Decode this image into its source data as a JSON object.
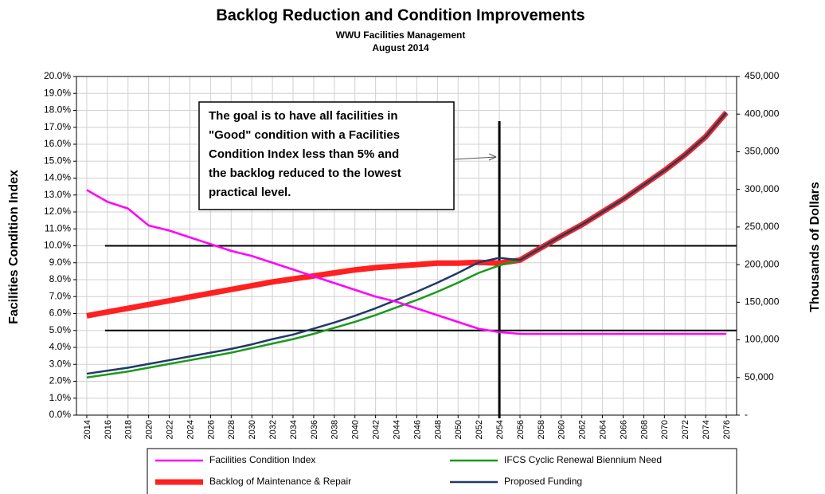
{
  "chart_data": {
    "type": "line",
    "title": "Backlog Reduction and Condition Improvements",
    "subtitle": [
      "WWU Facilities Management",
      "August 2014"
    ],
    "ylabel": "Facilities  Condition  Index",
    "y2label": "Thousands  of Dollars",
    "categories": [
      "2014",
      "2016",
      "2018",
      "2020",
      "2022",
      "2024",
      "2026",
      "2028",
      "2030",
      "2032",
      "2034",
      "2036",
      "2038",
      "2040",
      "2042",
      "2044",
      "2046",
      "2048",
      "2050",
      "2052",
      "2054",
      "2056",
      "2058",
      "2060",
      "2062",
      "2064",
      "2066",
      "2068",
      "2070",
      "2072",
      "2074",
      "2076"
    ],
    "ylim": [
      0,
      20
    ],
    "yticks": [
      {
        "value": 20,
        "label": "20.0%"
      },
      {
        "value": 19,
        "label": "19.0%"
      },
      {
        "value": 18,
        "label": "18.0%"
      },
      {
        "value": 17,
        "label": "17.0%"
      },
      {
        "value": 16,
        "label": "16.0%"
      },
      {
        "value": 15,
        "label": "15.0%"
      },
      {
        "value": 14,
        "label": "14.0%"
      },
      {
        "value": 13,
        "label": "13.0%"
      },
      {
        "value": 12,
        "label": "12.0%"
      },
      {
        "value": 11,
        "label": "11.0%"
      },
      {
        "value": 10,
        "label": "10.0%"
      },
      {
        "value": 9,
        "label": "9.0%"
      },
      {
        "value": 8,
        "label": "8.0%"
      },
      {
        "value": 7,
        "label": "7.0%"
      },
      {
        "value": 6,
        "label": "6.0%"
      },
      {
        "value": 5,
        "label": "5.0%"
      },
      {
        "value": 4,
        "label": "4.0%"
      },
      {
        "value": 3,
        "label": "3.0%"
      },
      {
        "value": 2,
        "label": "2.0%"
      },
      {
        "value": 1,
        "label": "1.0%"
      },
      {
        "value": 0,
        "label": "0.0%"
      }
    ],
    "y2lim": [
      0,
      450000
    ],
    "y2ticks": [
      {
        "value": 450000,
        "label": "450,000"
      },
      {
        "value": 400000,
        "label": "400,000"
      },
      {
        "value": 350000,
        "label": "350,000"
      },
      {
        "value": 300000,
        "label": "300,000"
      },
      {
        "value": 250000,
        "label": "250,000"
      },
      {
        "value": 200000,
        "label": "200,000"
      },
      {
        "value": 150000,
        "label": "150,000"
      },
      {
        "value": 100000,
        "label": "100,000"
      },
      {
        "value": 50000,
        "label": "50,000"
      },
      {
        "value": 0,
        "label": "-"
      }
    ],
    "grid": true,
    "hlines": [
      10,
      5
    ],
    "vline": 2054,
    "annotation": [
      "The goal is to have all facilities in",
      "\"Good\" condition with a Facilities",
      "Condition  Index less than 5% and",
      "the backlog reduced to the lowest",
      "practical level."
    ],
    "series": [
      {
        "name": "Facilities Condition Index",
        "color": "#ff00ff",
        "values": [
          13.3,
          12.6,
          12.2,
          11.2,
          10.9,
          10.5,
          10.1,
          9.7,
          9.4,
          9.0,
          8.6,
          8.2,
          7.8,
          7.4,
          7.0,
          6.7,
          6.3,
          5.9,
          5.5,
          5.1,
          4.9,
          4.8,
          4.8,
          4.8,
          4.8,
          4.8,
          4.8,
          4.8,
          4.8,
          4.8,
          4.8,
          4.8
        ]
      },
      {
        "name": "Backlog of Maintenance & Repair",
        "color": "#ff2020",
        "axis": "y2",
        "values": [
          132000,
          137000,
          142000,
          147000,
          152000,
          157000,
          162000,
          167000,
          172000,
          177000,
          181000,
          185000,
          189000,
          193000,
          196000,
          198000,
          200000,
          202000,
          202000,
          203000,
          202000,
          206000,
          222000,
          238000,
          253000,
          270000,
          287000,
          306000,
          325000,
          346000,
          370000,
          402000
        ]
      },
      {
        "name": "IFCS Cyclic Renewal Biennium Need",
        "color": "#1a9a1a",
        "axis": "y2",
        "values": [
          50000,
          54000,
          58000,
          63000,
          68000,
          73000,
          78000,
          83000,
          89000,
          95000,
          101000,
          108000,
          116000,
          124000,
          133000,
          143000,
          153000,
          164000,
          176000,
          189000,
          199000,
          206000,
          222000,
          238000,
          253000,
          270000,
          287000,
          306000,
          325000,
          346000,
          370000,
          402000
        ]
      },
      {
        "name": "Proposed Funding",
        "color": "#1f3a68",
        "axis": "y2",
        "values": [
          55000,
          59000,
          63000,
          68000,
          73000,
          78000,
          83000,
          88000,
          94000,
          101000,
          107000,
          115000,
          123000,
          132000,
          142000,
          153000,
          164000,
          176000,
          189000,
          203000,
          209000,
          206000,
          222000,
          238000,
          253000,
          270000,
          287000,
          306000,
          325000,
          346000,
          370000,
          402000
        ]
      }
    ]
  }
}
